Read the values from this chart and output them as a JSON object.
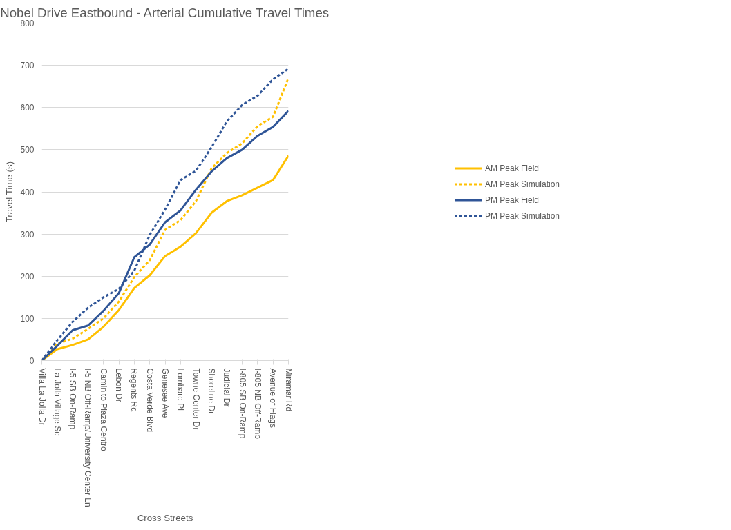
{
  "chart_data": {
    "type": "line",
    "title": "Nobel Drive Eastbound - Arterial Cumulative Travel Times",
    "xlabel": "Cross Streets",
    "ylabel": "Travel Time (s)",
    "categories": [
      "Villa La Jolla Dr",
      "La Jolla Village Sq",
      "I-5 SB On-Ramp",
      "I-5 NB Off-Ramp/University Center Ln",
      "Caminito Plaza Centro",
      "Lebon Dr",
      "Regents Rd",
      "Costa Verde Blvd",
      "Genesee Ave",
      "Lombard Pl",
      "Towne Center Dr",
      "Shoreline Dr",
      "Judicial Dr",
      "I-805 SB On-Ramp",
      "I-805 NB Off-Ramp",
      "Avenue of Flags",
      "Miramar Rd"
    ],
    "series": [
      {
        "name": "AM Peak Field",
        "color": "#ffc000",
        "line_style": "solid",
        "values": [
          0,
          27,
          37,
          50,
          80,
          120,
          172,
          202,
          248,
          270,
          302,
          350,
          378,
          392,
          410,
          428,
          486
        ]
      },
      {
        "name": "AM Peak Simulation",
        "color": "#ffc000",
        "line_style": "dashed",
        "values": [
          0,
          40,
          52,
          75,
          100,
          140,
          198,
          238,
          310,
          333,
          378,
          455,
          492,
          515,
          556,
          578,
          670
        ]
      },
      {
        "name": "PM Peak Field",
        "color": "#2f5597",
        "line_style": "solid",
        "values": [
          0,
          35,
          72,
          83,
          118,
          160,
          245,
          275,
          328,
          356,
          405,
          448,
          480,
          500,
          533,
          554,
          592
        ]
      },
      {
        "name": "PM Peak Simulation",
        "color": "#2f5597",
        "line_style": "dashed",
        "values": [
          0,
          48,
          92,
          125,
          150,
          170,
          213,
          298,
          358,
          428,
          450,
          505,
          567,
          606,
          628,
          667,
          692
        ]
      }
    ],
    "ylim": [
      0,
      800
    ],
    "yticks": [
      0,
      100,
      200,
      300,
      400,
      500,
      600,
      700,
      800
    ],
    "grid": "y",
    "legend": "right",
    "marker": "none"
  }
}
